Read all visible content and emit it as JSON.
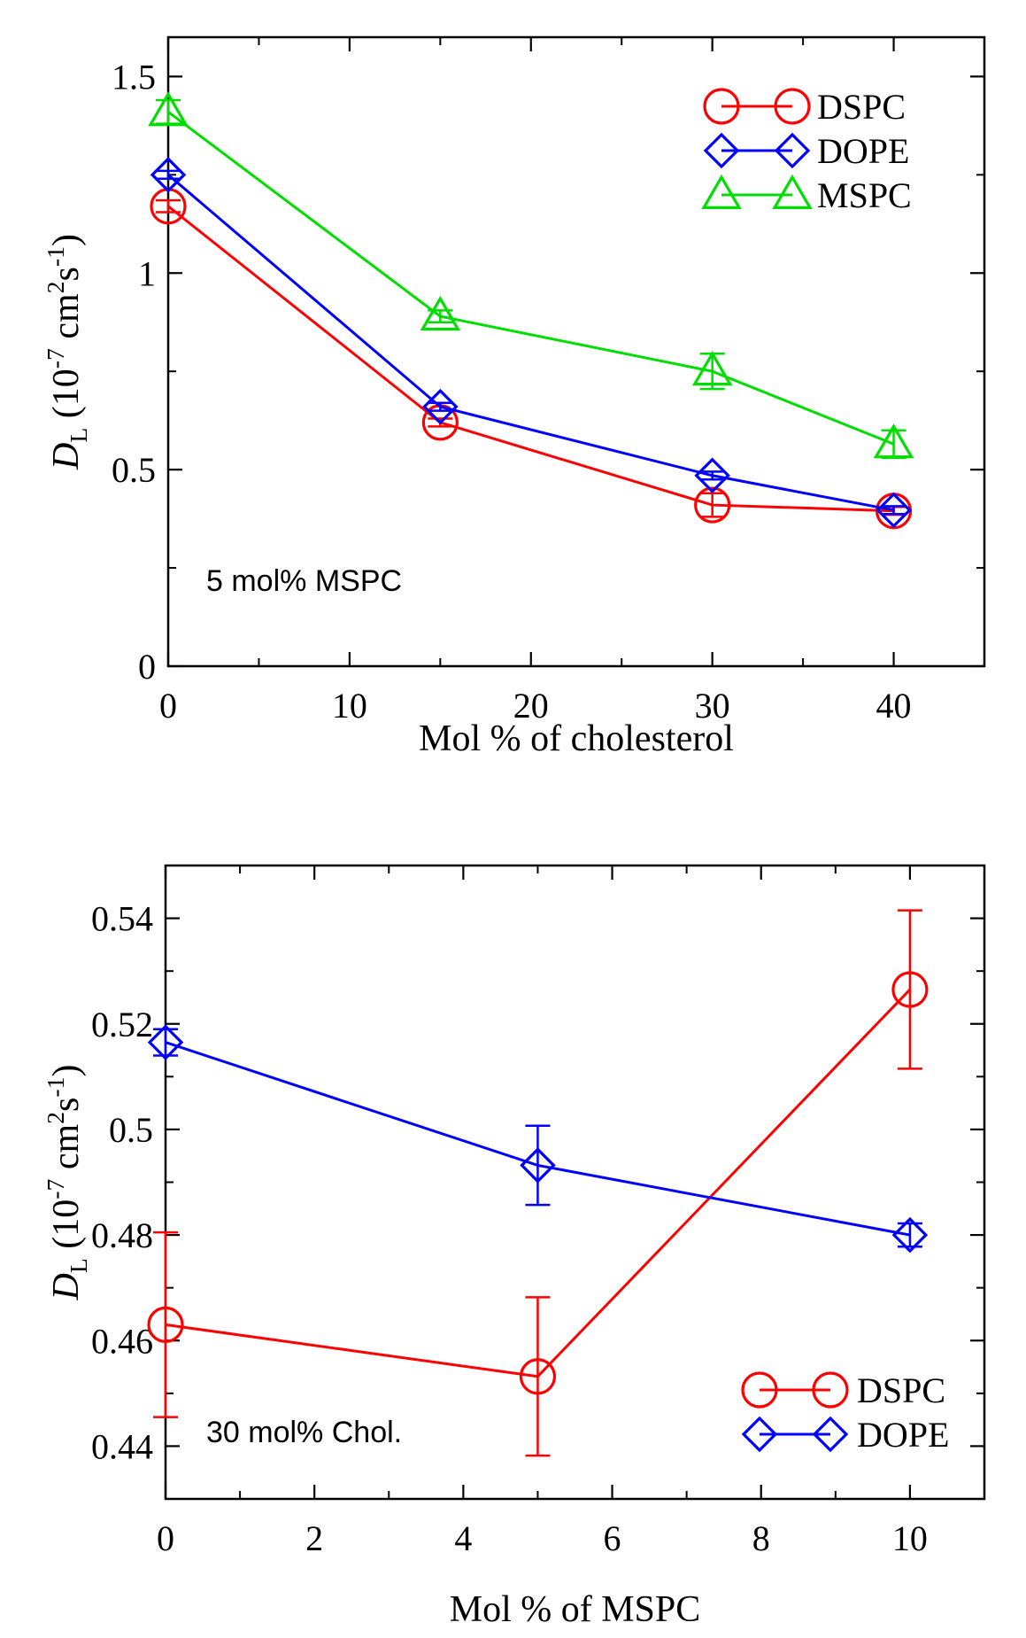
{
  "chart_data": [
    {
      "type": "line",
      "panel": "top",
      "title": "",
      "xlabel": "Mol % of cholesterol",
      "ylabel": {
        "symbol": "D",
        "subscript": "L",
        "open": " (10",
        "exp1": "-7",
        "mid": " cm",
        "exp2": "2",
        "mid2": "s",
        "exp3": "-1",
        "close": ")"
      },
      "xlim": [
        0,
        45
      ],
      "ylim": [
        0,
        1.6
      ],
      "xticks": [
        0,
        10,
        20,
        30,
        40
      ],
      "xtick_labels": [
        "0",
        "10",
        "20",
        "30",
        "40"
      ],
      "xminor": [
        5,
        15,
        25,
        35,
        45
      ],
      "yticks": [
        0,
        0.5,
        1,
        1.5
      ],
      "ytick_labels": [
        "0",
        "0.5",
        "1",
        "1.5"
      ],
      "yminor": [
        0.25,
        0.75,
        1.25
      ],
      "grid": false,
      "legend_position": "top-right",
      "annotation": "5 mol% MSPC",
      "x": [
        0,
        15,
        30,
        40
      ],
      "series": [
        {
          "name": "DSPC",
          "marker": "circle",
          "color": "#ff0000",
          "values": [
            1.17,
            0.62,
            0.41,
            0.395
          ],
          "errors": [
            0.015,
            0.01,
            0.03,
            0.01
          ]
        },
        {
          "name": "DOPE",
          "marker": "diamond",
          "color": "#0000ff",
          "values": [
            1.25,
            0.66,
            0.485,
            0.397
          ],
          "errors": [
            0.01,
            0.01,
            0.01,
            0.01
          ]
        },
        {
          "name": "MSPC",
          "marker": "triangle",
          "color": "#00dd00",
          "values": [
            1.41,
            0.89,
            0.75,
            0.565
          ],
          "errors": [
            0.03,
            0.015,
            0.045,
            0.035
          ]
        }
      ]
    },
    {
      "type": "line",
      "panel": "bottom",
      "title": "",
      "xlabel": "Mol % of MSPC",
      "ylabel": {
        "symbol": "D",
        "subscript": "L",
        "open": " (10",
        "exp1": "-7",
        "mid": " cm",
        "exp2": "2",
        "mid2": "s",
        "exp3": "-1",
        "close": ")"
      },
      "xlim": [
        0,
        11
      ],
      "ylim": [
        0.43,
        0.55
      ],
      "xticks": [
        0,
        2,
        4,
        6,
        8,
        10
      ],
      "xtick_labels": [
        "0",
        "2",
        "4",
        "6",
        "8",
        "10"
      ],
      "xminor": [
        1,
        3,
        5,
        7,
        9,
        11
      ],
      "yticks": [
        0.44,
        0.46,
        0.48,
        0.5,
        0.52,
        0.54
      ],
      "ytick_labels": [
        "0.44",
        "0.46",
        "0.48",
        "0.5",
        "0.52",
        "0.54"
      ],
      "yminor": [
        0.45,
        0.47,
        0.49,
        0.51,
        0.53
      ],
      "grid": false,
      "legend_position": "bottom-right",
      "annotation": "30 mol% Chol.",
      "x": [
        0,
        5,
        10
      ],
      "series": [
        {
          "name": "DSPC",
          "marker": "circle",
          "color": "#ff0000",
          "values": [
            0.463,
            0.4532,
            0.5265
          ],
          "errors": [
            0.0175,
            0.015,
            0.015
          ]
        },
        {
          "name": "DOPE",
          "marker": "diamond",
          "color": "#0000ff",
          "values": [
            0.5165,
            0.4932,
            0.48
          ],
          "errors": [
            0.0025,
            0.0075,
            0.0022
          ]
        }
      ]
    }
  ]
}
